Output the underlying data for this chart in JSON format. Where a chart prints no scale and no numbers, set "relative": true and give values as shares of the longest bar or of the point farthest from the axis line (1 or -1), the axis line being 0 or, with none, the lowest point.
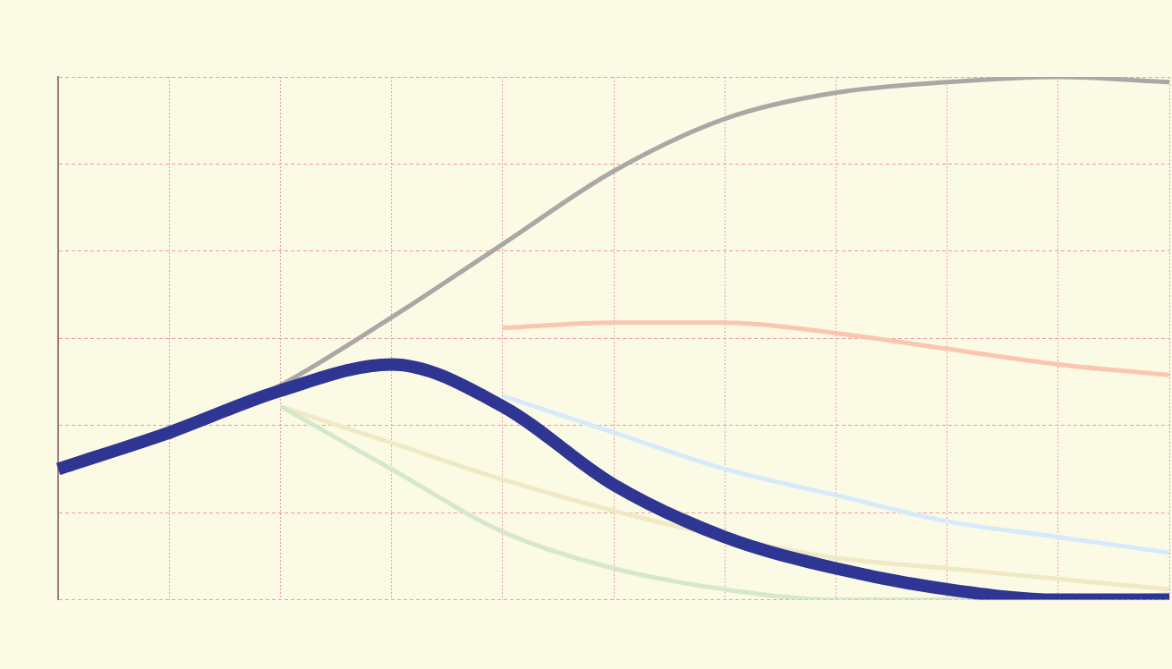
{
  "chart_data": {
    "type": "line",
    "relative": true,
    "grid": true,
    "legend": false,
    "marker": "none",
    "line_style": "solid",
    "categories": [
      null,
      null,
      null,
      null,
      null,
      null,
      null,
      null,
      null,
      null,
      null
    ],
    "series": [
      {
        "color": "#aaa7a4",
        "values": [
          null,
          0.31,
          0.41,
          0.54,
          0.68,
          0.82,
          0.92,
          0.97,
          0.99,
          1.0,
          0.99
        ]
      },
      {
        "color": "#fbc6b0",
        "values": [
          null,
          null,
          null,
          null,
          0.52,
          0.53,
          0.53,
          0.51,
          0.48,
          0.45,
          0.43
        ]
      },
      {
        "color": "#d6eafb",
        "values": [
          null,
          null,
          null,
          null,
          0.39,
          0.32,
          0.25,
          0.2,
          0.15,
          0.12,
          0.09
        ]
      },
      {
        "color": "#efe9c6",
        "values": [
          null,
          null,
          0.37,
          0.3,
          0.23,
          0.17,
          0.12,
          0.08,
          0.06,
          0.04,
          0.02
        ]
      },
      {
        "color": "#d6e8cc",
        "values": [
          null,
          null,
          0.37,
          0.25,
          0.13,
          0.06,
          0.02,
          0.0,
          0.0,
          0.0,
          0.01
        ]
      },
      {
        "color": "#2e3592",
        "values": [
          0.25,
          0.32,
          0.4,
          0.45,
          0.37,
          0.22,
          0.12,
          0.06,
          0.02,
          0.0,
          0.0
        ]
      }
    ]
  }
}
